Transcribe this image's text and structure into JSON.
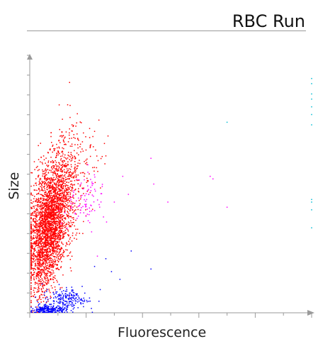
{
  "title": "RBC Run",
  "chart_data": {
    "type": "scatter",
    "title": "RBC Run",
    "xlabel": "Fluorescence",
    "ylabel": "Size",
    "xlim": [
      0,
      10
    ],
    "ylim": [
      0,
      10
    ],
    "grid": false,
    "axis_color": "#9a9a9a",
    "series": [
      {
        "color": "#ff0000",
        "clusters": [
          {
            "center": [
              0.7,
              3.6
            ],
            "spread": [
              0.35,
              1.25
            ],
            "tilt": 0.55,
            "count": 2600
          },
          {
            "center": [
              0.55,
              1.9
            ],
            "spread": [
              0.22,
              0.6
            ],
            "tilt": 0.4,
            "count": 250
          },
          {
            "center": [
              1.3,
              5.0
            ],
            "spread": [
              0.5,
              1.3
            ],
            "tilt": 0.8,
            "count": 350
          }
        ],
        "points": [
          [
            1.5,
            7.3
          ],
          [
            1.4,
            6.9
          ],
          [
            0.9,
            2.0
          ],
          [
            0.3,
            0.4
          ],
          [
            0.6,
            1.1
          ]
        ]
      },
      {
        "color": "#0000ff",
        "clusters": [
          {
            "center": [
              0.65,
              0.1
            ],
            "spread": [
              0.32,
              0.08
            ],
            "tilt": 0.0,
            "count": 220
          },
          {
            "center": [
              1.35,
              0.55
            ],
            "spread": [
              0.45,
              0.2
            ],
            "tilt": 0.45,
            "count": 200
          }
        ],
        "points": [
          [
            2.3,
            1.8
          ],
          [
            2.7,
            2.1
          ],
          [
            3.6,
            2.4
          ],
          [
            2.9,
            1.6
          ],
          [
            4.3,
            1.7
          ],
          [
            3.2,
            1.3
          ],
          [
            2.5,
            0.9
          ]
        ]
      },
      {
        "color": "#ff00ff",
        "clusters": [
          {
            "center": [
              2.0,
              4.3
            ],
            "spread": [
              0.35,
              0.55
            ],
            "tilt": 0.2,
            "count": 90
          }
        ],
        "points": [
          [
            3.3,
            5.3
          ],
          [
            4.3,
            6.0
          ],
          [
            4.4,
            5.0
          ],
          [
            4.9,
            4.3
          ],
          [
            6.4,
            5.3
          ],
          [
            6.5,
            5.2
          ],
          [
            7.0,
            4.1
          ],
          [
            3.5,
            4.6
          ],
          [
            3.0,
            4.3
          ],
          [
            2.4,
            2.2
          ]
        ]
      },
      {
        "color": "#00bcd4",
        "points": [
          [
            10.0,
            9.1
          ],
          [
            10.0,
            8.9
          ],
          [
            10.0,
            8.5
          ],
          [
            10.0,
            8.3
          ],
          [
            10.0,
            8.0
          ],
          [
            10.0,
            7.7
          ],
          [
            10.0,
            7.3
          ],
          [
            7.0,
            7.4
          ],
          [
            10.0,
            4.4
          ],
          [
            10.0,
            4.3
          ],
          [
            10.0,
            4.0
          ],
          [
            10.0,
            3.3
          ]
        ]
      },
      {
        "color": "#ff9999",
        "points": [
          [
            0.1,
            0.05
          ],
          [
            0.15,
            0.05
          ],
          [
            0.12,
            0.08
          ]
        ]
      }
    ]
  }
}
